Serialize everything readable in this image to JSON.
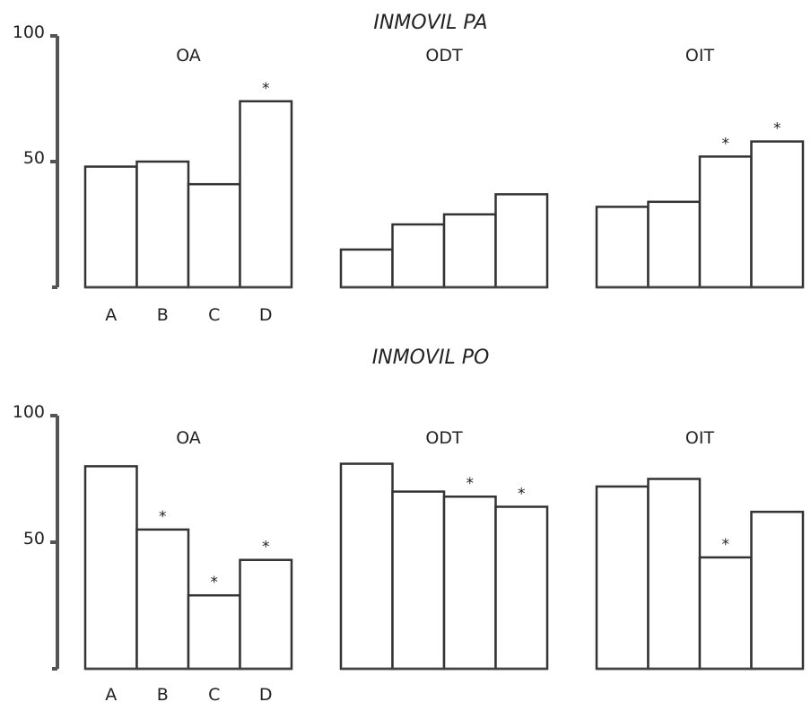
{
  "chart_data": [
    {
      "type": "bar",
      "title": "INMOVIL PA",
      "ylim": [
        0,
        100
      ],
      "yticks": [
        "100",
        "50"
      ],
      "yticks_values": [
        100,
        50
      ],
      "categories": [
        "A",
        "B",
        "C",
        "D"
      ],
      "panels": [
        {
          "name": "OA",
          "values": [
            48,
            50,
            41,
            74
          ],
          "significant": [
            false,
            false,
            false,
            true
          ]
        },
        {
          "name": "ODT",
          "values": [
            15,
            25,
            29,
            37
          ],
          "significant": [
            false,
            false,
            false,
            false
          ]
        },
        {
          "name": "OIT",
          "values": [
            32,
            34,
            52,
            58
          ],
          "significant": [
            false,
            false,
            true,
            true
          ]
        }
      ],
      "star_symbol": "*",
      "show_category_labels": true
    },
    {
      "type": "bar",
      "title": "INMOVIL PO",
      "ylim": [
        0,
        100
      ],
      "yticks": [
        "100",
        "50"
      ],
      "yticks_values": [
        100,
        50
      ],
      "categories": [
        "A",
        "B",
        "C",
        "D"
      ],
      "panels": [
        {
          "name": "OA",
          "values": [
            80,
            55,
            29,
            43
          ],
          "significant": [
            false,
            true,
            true,
            true
          ]
        },
        {
          "name": "ODT",
          "values": [
            81,
            70,
            68,
            64
          ],
          "significant": [
            false,
            false,
            true,
            true
          ]
        },
        {
          "name": "OIT",
          "values": [
            72,
            75,
            44,
            62
          ],
          "significant": [
            false,
            false,
            true,
            false
          ]
        }
      ],
      "star_symbol": "*",
      "show_category_labels": true
    }
  ]
}
